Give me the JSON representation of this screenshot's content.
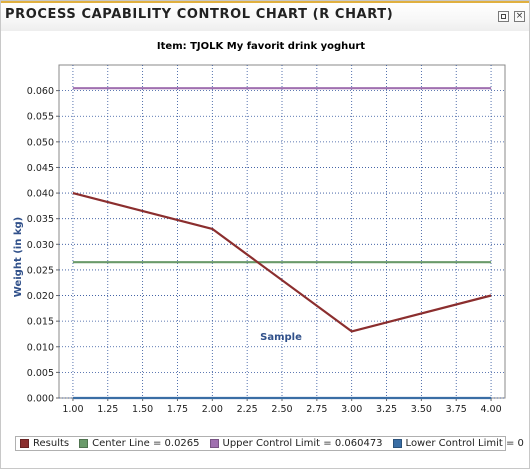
{
  "window": {
    "title": "PROCESS CAPABILITY CONTROL CHART (R CHART)",
    "buttons": [
      "restore-icon",
      "close-icon"
    ]
  },
  "chart_data": {
    "type": "line",
    "title": "Item: TJOLK My favorit drink yoghurt",
    "xlabel": "Sample",
    "ylabel": "Weight (in kg)",
    "xlim": [
      0.9,
      4.1
    ],
    "ylim": [
      0,
      0.065
    ],
    "x_ticks": [
      "1.00",
      "1.25",
      "1.50",
      "1.75",
      "2.00",
      "2.25",
      "2.50",
      "2.75",
      "3.00",
      "3.25",
      "3.50",
      "3.75",
      "4.00"
    ],
    "y_ticks": [
      "0.000",
      "0.005",
      "0.010",
      "0.015",
      "0.020",
      "0.025",
      "0.030",
      "0.035",
      "0.040",
      "0.045",
      "0.050",
      "0.055",
      "0.060"
    ],
    "grid": true,
    "legend_position": "bottom",
    "series": [
      {
        "name": "Results",
        "color": "#8b2e2e",
        "x": [
          1,
          2,
          3,
          4
        ],
        "y": [
          0.04,
          0.033,
          0.013,
          0.02
        ]
      },
      {
        "name": "Center Line = 0.0265",
        "color": "#6a9a6a",
        "x": [
          1,
          4
        ],
        "y": [
          0.0265,
          0.0265
        ]
      },
      {
        "name": "Upper Control Limit = 0.060473",
        "color": "#a070b0",
        "x": [
          1,
          4
        ],
        "y": [
          0.060473,
          0.060473
        ]
      },
      {
        "name": "Lower Control Limit = 0",
        "color": "#3a6ea5",
        "x": [
          1,
          4
        ],
        "y": [
          0,
          0
        ]
      }
    ]
  }
}
